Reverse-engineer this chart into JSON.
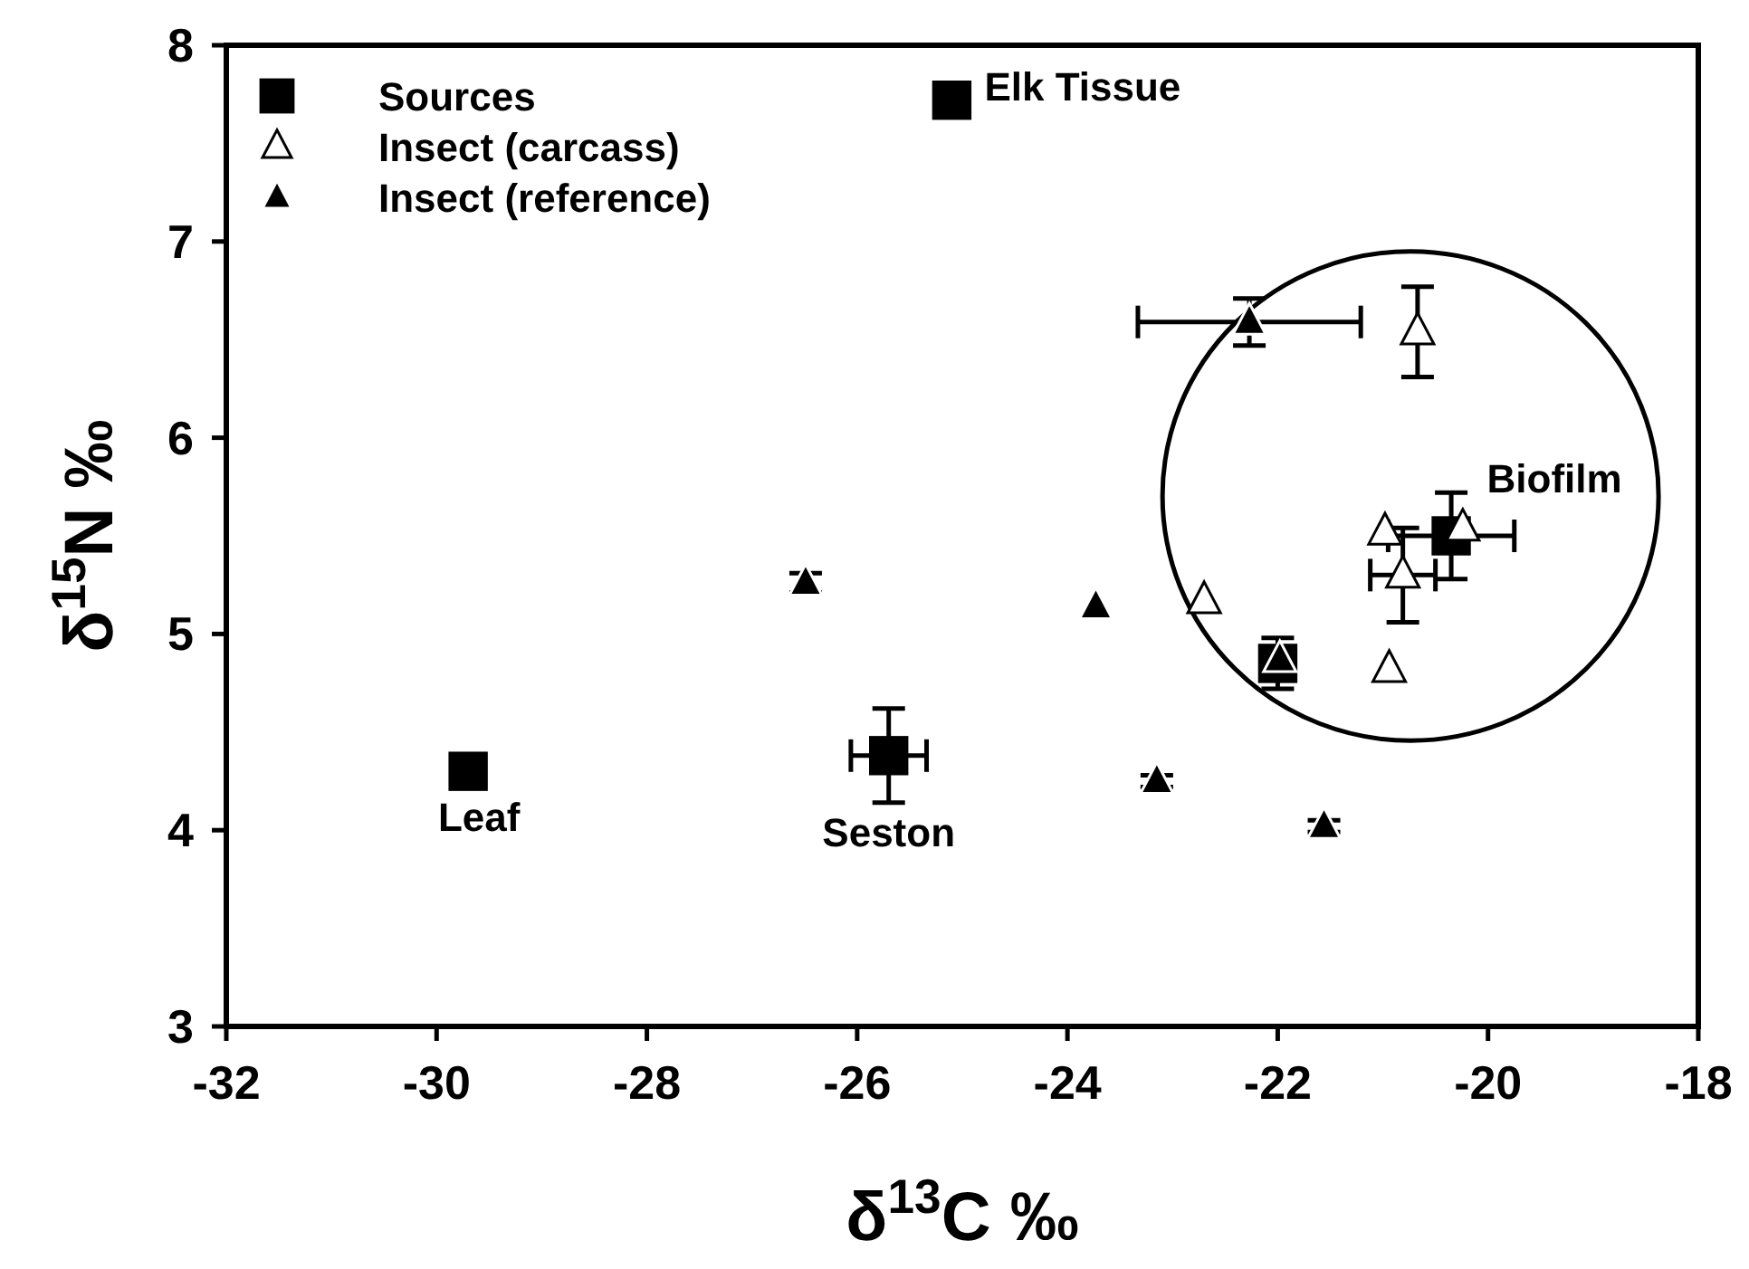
{
  "chart_data": {
    "type": "scatter",
    "xlabel": "δ$^{13}$C ‰",
    "ylabel": "δ$^{15}$N ‰",
    "xlim": [
      -32,
      -18
    ],
    "xticks": [
      -32,
      -30,
      -28,
      -26,
      -24,
      -22,
      -20,
      -18
    ],
    "ylim": [
      3,
      8
    ],
    "yticks": [
      3,
      4,
      5,
      6,
      7,
      8
    ],
    "legend": "top left",
    "grid": false,
    "series": [
      {
        "name": "Sources",
        "color": "#000000",
        "marker": "square",
        "x": [
          -29.7,
          -25.7,
          -25.1,
          -20.35,
          -22.0
        ],
        "values": [
          4.3,
          4.38,
          7.72,
          5.5,
          4.85
        ],
        "errors": [
          null,
          0.24,
          null,
          0.22,
          0.13
        ],
        "xerrors": [
          null,
          0.36,
          null,
          0.6,
          null
        ]
      },
      {
        "name": "Insect (carcass)",
        "color": "#ffffff",
        "marker": "triangle",
        "x": [
          -20.67,
          -20.24,
          -20.98,
          -20.81,
          -22.7,
          -20.94
        ],
        "values": [
          6.54,
          5.54,
          5.52,
          5.3,
          5.17,
          4.82
        ],
        "errors": [
          0.23,
          null,
          null,
          0.24,
          null,
          null
        ],
        "xerrors": [
          null,
          null,
          null,
          0.31,
          null,
          null
        ]
      },
      {
        "name": "Insect (reference)",
        "color": "#000000",
        "marker": "triangle",
        "x": [
          -22.27,
          -26.49,
          -23.73,
          -23.15,
          -21.56,
          -21.98
        ],
        "values": [
          6.59,
          5.26,
          5.14,
          4.25,
          4.02,
          4.87
        ],
        "errors": [
          0.12,
          0.05,
          null,
          0.03,
          0.03,
          null
        ],
        "xerrors": [
          1.06,
          null,
          null,
          null,
          null,
          null
        ]
      }
    ],
    "annotations": [
      {
        "text": "Leaf",
        "x": -29.7,
        "y": 4.3
      },
      {
        "text": "Seston",
        "x": -25.7,
        "y": 4.38
      },
      {
        "text": "Elk Tissue",
        "x": -25.1,
        "y": 7.72
      },
      {
        "text": "Biofilm",
        "x": -20.35,
        "y": 5.5
      }
    ]
  }
}
